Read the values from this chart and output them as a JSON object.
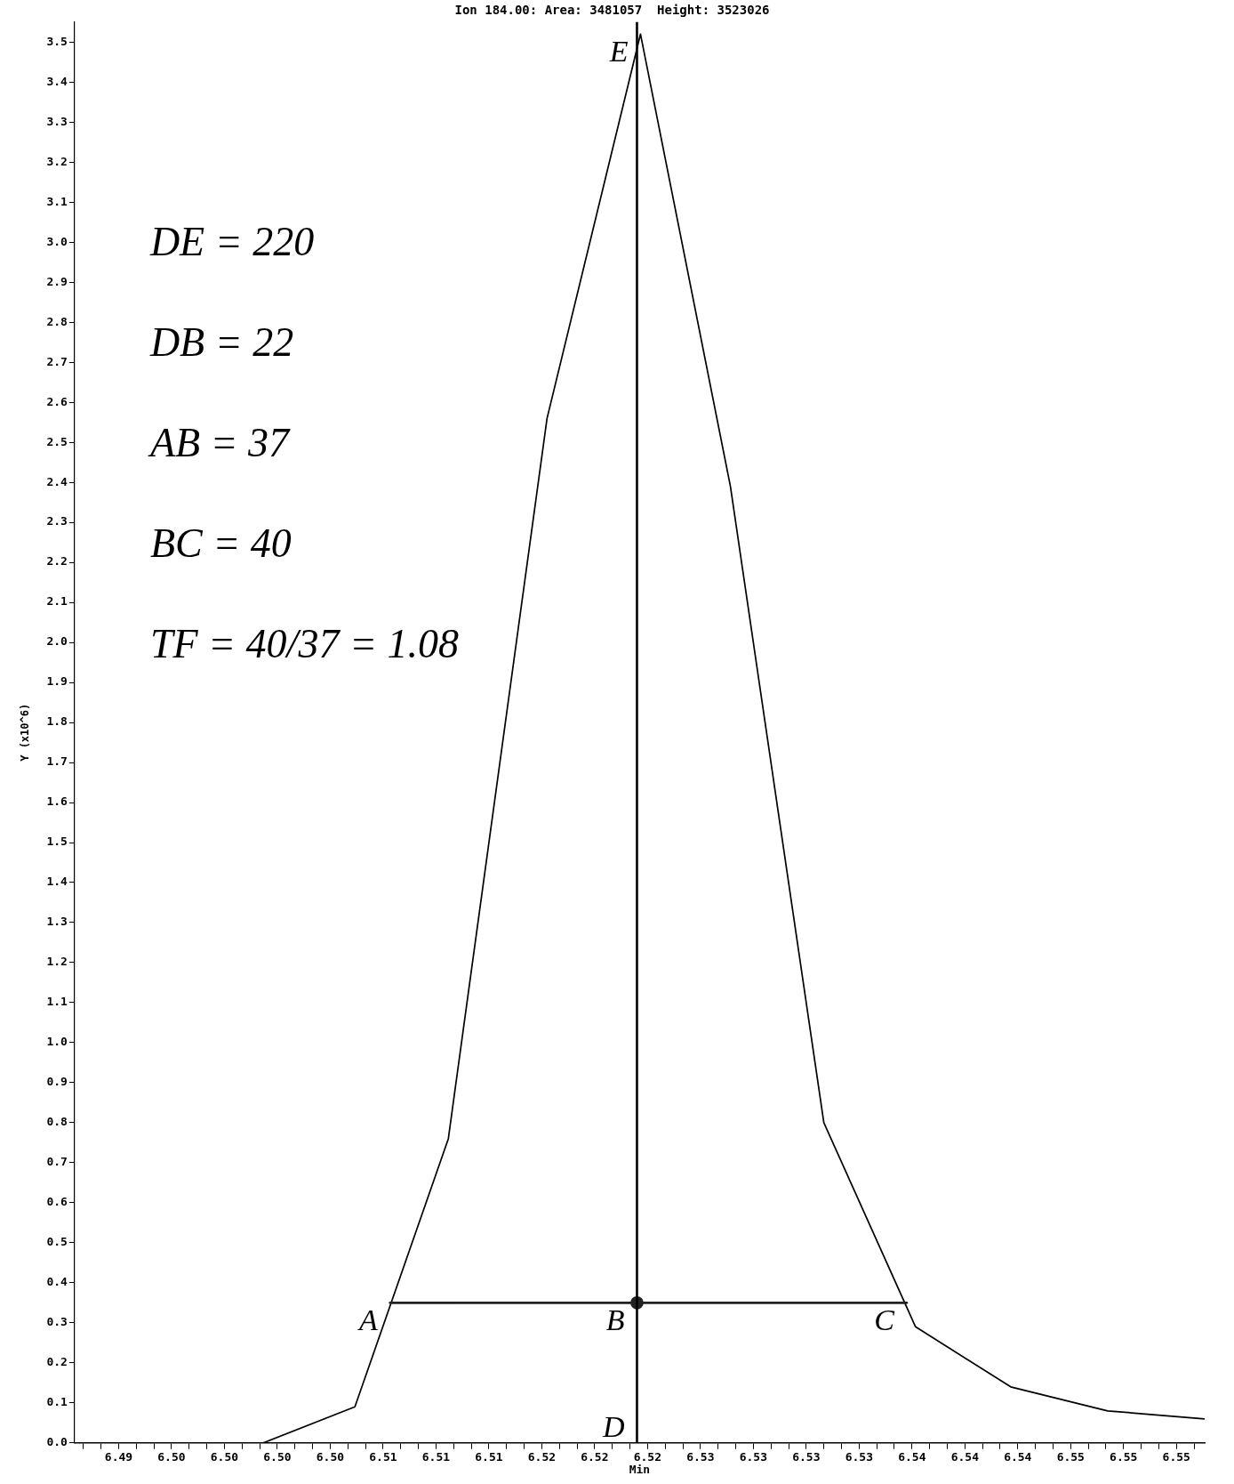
{
  "chart_data": {
    "type": "line",
    "title": "Ion 184.00: Area: 3481057  Height: 3523026",
    "xlabel": "Min",
    "ylabel": "Y (x10^6)",
    "series": [
      {
        "type": "line",
        "color": "#000000",
        "x": [
          6.4902,
          6.4954,
          6.5007,
          6.5059,
          6.5112,
          6.5168,
          6.5221,
          6.5272,
          6.5325,
          6.5377,
          6.5431,
          6.5486,
          6.5541
        ],
        "values": [
          0,
          0,
          0,
          0.09,
          0.76,
          2.56,
          3.52,
          2.39,
          0.8,
          0.29,
          0.14,
          0.08,
          0.06
        ]
      },
      {
        "type": "line",
        "color": "#222222",
        "x": [
          6.5079,
          6.5372
        ],
        "values": [
          0.35,
          0.35
        ]
      },
      {
        "type": "scatter",
        "color": "#222222",
        "x": [
          6.5219
        ],
        "values": [
          0.35
        ],
        "marker": "circle"
      }
    ],
    "xlim": [
      6.49,
      6.5541
    ],
    "xticks": [
      {
        "value": 6.4905,
        "label": null
      },
      {
        "value": 6.4915,
        "label": null
      },
      {
        "value": 6.4925,
        "label": "6.49"
      },
      {
        "value": 6.4935,
        "label": null
      },
      {
        "value": 6.4945,
        "label": null
      },
      {
        "value": 6.4955,
        "label": "6.50"
      },
      {
        "value": 6.4965,
        "label": null
      },
      {
        "value": 6.4975,
        "label": null
      },
      {
        "value": 6.4985,
        "label": "6.50"
      },
      {
        "value": 6.4995,
        "label": null
      },
      {
        "value": 6.5005,
        "label": null
      },
      {
        "value": 6.5015,
        "label": "6.50"
      },
      {
        "value": 6.5025,
        "label": null
      },
      {
        "value": 6.5035,
        "label": null
      },
      {
        "value": 6.5045,
        "label": "6.50"
      },
      {
        "value": 6.5055,
        "label": null
      },
      {
        "value": 6.5065,
        "label": null
      },
      {
        "value": 6.5075,
        "label": "6.51"
      },
      {
        "value": 6.5085,
        "label": null
      },
      {
        "value": 6.5095,
        "label": null
      },
      {
        "value": 6.5105,
        "label": "6.51"
      },
      {
        "value": 6.5115,
        "label": null
      },
      {
        "value": 6.5125,
        "label": null
      },
      {
        "value": 6.5135,
        "label": "6.51"
      },
      {
        "value": 6.5145,
        "label": null
      },
      {
        "value": 6.5155,
        "label": null
      },
      {
        "value": 6.5165,
        "label": "6.52"
      },
      {
        "value": 6.5175,
        "label": null
      },
      {
        "value": 6.5185,
        "label": null
      },
      {
        "value": 6.5195,
        "label": "6.52"
      },
      {
        "value": 6.5205,
        "label": null
      },
      {
        "value": 6.5215,
        "label": null
      },
      {
        "value": 6.5225,
        "label": "6.52"
      },
      {
        "value": 6.5235,
        "label": null
      },
      {
        "value": 6.5245,
        "label": null
      },
      {
        "value": 6.5255,
        "label": "6.53"
      },
      {
        "value": 6.5265,
        "label": null
      },
      {
        "value": 6.5275,
        "label": null
      },
      {
        "value": 6.5285,
        "label": "6.53"
      },
      {
        "value": 6.5295,
        "label": null
      },
      {
        "value": 6.5305,
        "label": null
      },
      {
        "value": 6.5315,
        "label": "6.53"
      },
      {
        "value": 6.5325,
        "label": null
      },
      {
        "value": 6.5335,
        "label": null
      },
      {
        "value": 6.5345,
        "label": "6.53"
      },
      {
        "value": 6.5355,
        "label": null
      },
      {
        "value": 6.5365,
        "label": null
      },
      {
        "value": 6.5375,
        "label": "6.54"
      },
      {
        "value": 6.5385,
        "label": null
      },
      {
        "value": 6.5395,
        "label": null
      },
      {
        "value": 6.5405,
        "label": "6.54"
      },
      {
        "value": 6.5415,
        "label": null
      },
      {
        "value": 6.5425,
        "label": null
      },
      {
        "value": 6.5435,
        "label": "6.54"
      },
      {
        "value": 6.5445,
        "label": null
      },
      {
        "value": 6.5455,
        "label": null
      },
      {
        "value": 6.5465,
        "label": "6.55"
      },
      {
        "value": 6.5475,
        "label": null
      },
      {
        "value": 6.5485,
        "label": null
      },
      {
        "value": 6.5495,
        "label": "6.55"
      },
      {
        "value": 6.5505,
        "label": null
      },
      {
        "value": 6.5515,
        "label": null
      },
      {
        "value": 6.5525,
        "label": "6.55"
      },
      {
        "value": 6.5535,
        "label": null
      }
    ],
    "ylim": [
      0,
      3.55
    ],
    "yticks": [
      {
        "value": 0,
        "label": "0.0"
      },
      0.1,
      0.2,
      0.3,
      0.4,
      0.5,
      0.6,
      0.7,
      0.8,
      0.9,
      {
        "value": 1,
        "label": "1.0"
      },
      1.1,
      1.2,
      1.3,
      1.4,
      1.5,
      1.6,
      1.7,
      1.8,
      1.9,
      {
        "value": 2,
        "label": "2.0"
      },
      2.1,
      2.2,
      2.3,
      2.4,
      2.5,
      2.6,
      2.7,
      2.8,
      2.9,
      {
        "value": 3,
        "label": "3.0"
      },
      3.1,
      3.2,
      3.3,
      3.4,
      3.5
    ],
    "ref_lines": [
      {
        "axis": "x",
        "value": 6.5219,
        "color": "#000000"
      }
    ],
    "annotations": [
      {
        "text": "A",
        "x": 6.5079,
        "y": 0.35
      },
      {
        "text": "B",
        "x": 6.5219,
        "y": 0.35
      },
      {
        "text": "C",
        "x": 6.5372,
        "y": 0.35
      },
      {
        "text": "D",
        "x": 6.5219,
        "y": 0
      },
      {
        "text": "E",
        "x": 6.5221,
        "y": 3.52
      },
      "DE = 220",
      "DB = 22",
      "AB = 37",
      "BC = 40",
      "TF = 40/37 = 1.08"
    ],
    "grid": false,
    "legend": false,
    "marker": "none",
    "line_style": "solid"
  }
}
